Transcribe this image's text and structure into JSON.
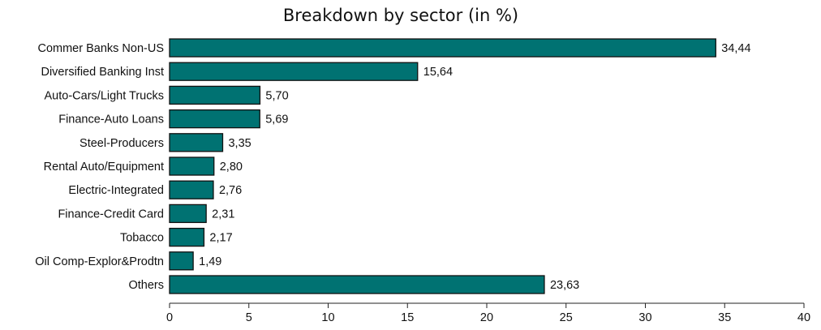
{
  "chart_data": {
    "type": "bar",
    "orientation": "horizontal",
    "title": "Breakdown by sector (in %)",
    "categories": [
      "Commer Banks Non-US",
      "Diversified Banking Inst",
      "Auto-Cars/Light Trucks",
      "Finance-Auto Loans",
      "Steel-Producers",
      "Rental Auto/Equipment",
      "Electric-Integrated",
      "Finance-Credit Card",
      "Tobacco",
      "Oil Comp-Explor&Prodtn",
      "Others"
    ],
    "values": [
      34.44,
      15.64,
      5.7,
      5.69,
      3.35,
      2.8,
      2.76,
      2.31,
      2.17,
      1.49,
      23.63
    ],
    "value_labels": [
      "34,44",
      "15,64",
      "5,70",
      "5,69",
      "3,35",
      "2,80",
      "2,76",
      "2,31",
      "2,17",
      "1,49",
      "23,63"
    ],
    "xlim": [
      0,
      40
    ],
    "xticks": [
      0,
      5,
      10,
      15,
      20,
      25,
      30,
      35,
      40
    ],
    "xtick_labels": [
      "0",
      "5",
      "10",
      "15",
      "20",
      "25",
      "30",
      "35",
      "40"
    ],
    "grid": false,
    "legend": "none",
    "colors": {
      "bar_fill": "#007272",
      "bar_stroke": "#111111",
      "axis": "#222222",
      "text": "#111111"
    }
  }
}
